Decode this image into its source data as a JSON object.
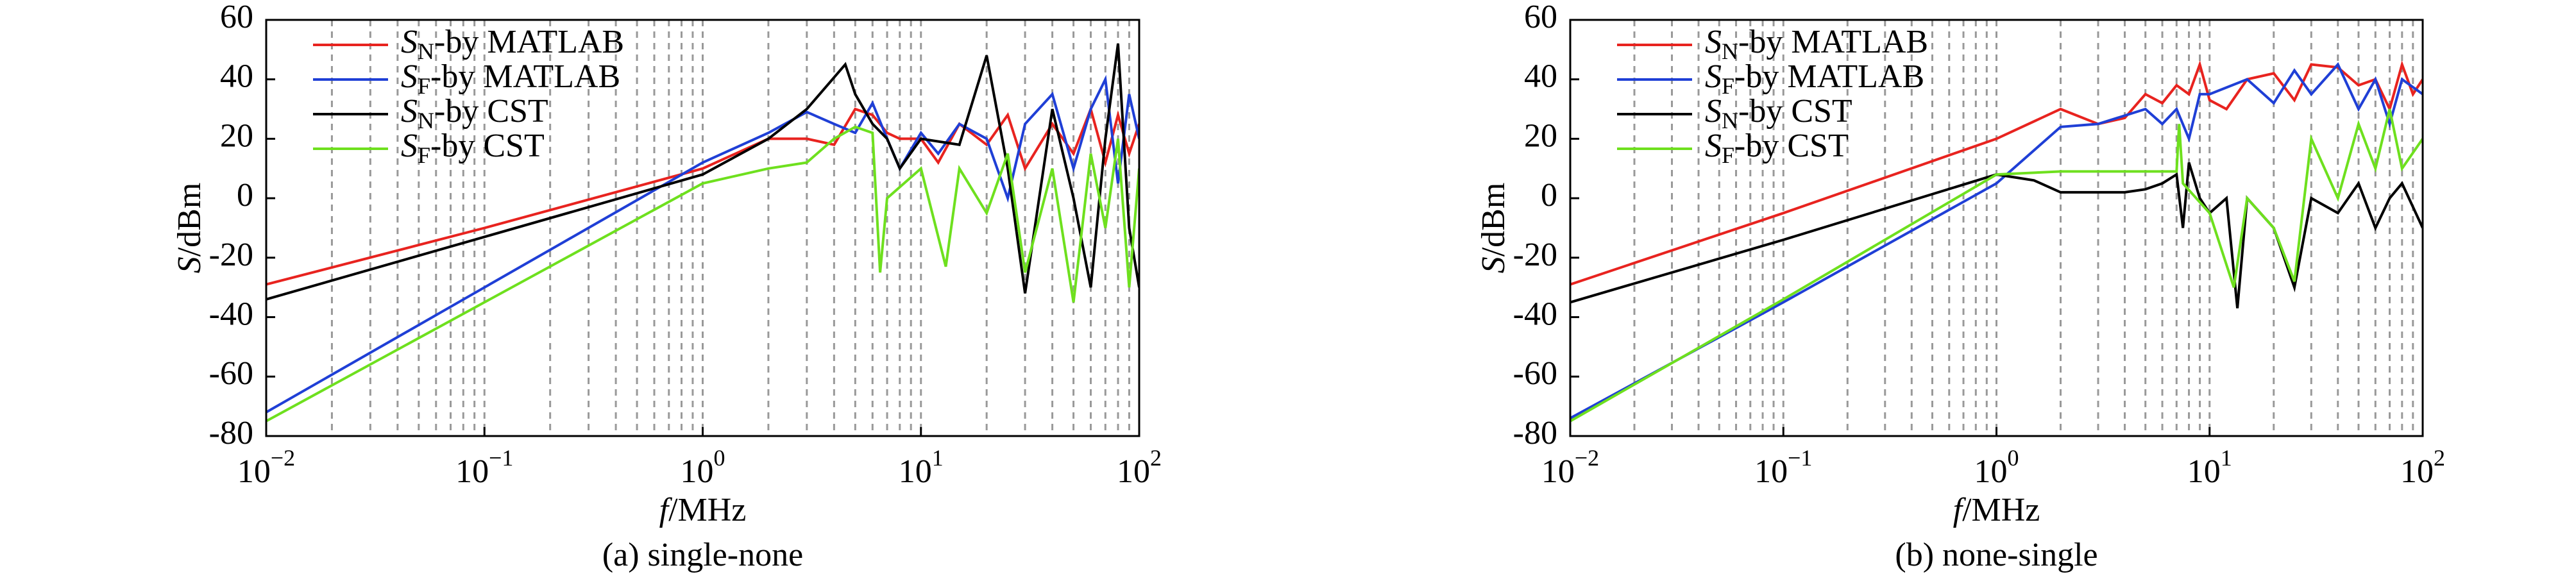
{
  "chart_data": [
    {
      "type": "line",
      "caption": "(a) single-none",
      "xlabel": "f/MHz",
      "ylabel": "S/dBm",
      "log_x": true,
      "grid": true,
      "xlim": [
        0.01,
        100
      ],
      "ylim": [
        -80,
        60
      ],
      "xticks": [
        {
          "value": 0.01,
          "label": "10−2"
        },
        {
          "value": 0.1,
          "label": "10−1"
        },
        {
          "value": 1,
          "label": "100"
        },
        {
          "value": 10,
          "label": "101"
        },
        {
          "value": 100,
          "label": "102"
        }
      ],
      "yticks": [
        -80,
        -60,
        -40,
        -20,
        0,
        20,
        40,
        60
      ],
      "series": [
        {
          "name": "SN-by MATLAB",
          "color": "#e8231f",
          "x": [
            0.01,
            0.1,
            1,
            2,
            3,
            4,
            5,
            6,
            7,
            8,
            10,
            12,
            15,
            20,
            25,
            30,
            40,
            50,
            60,
            70,
            80,
            90,
            100
          ],
          "values": [
            -29,
            -10,
            10,
            20,
            20,
            18,
            30,
            28,
            22,
            20,
            20,
            12,
            25,
            18,
            28,
            10,
            25,
            15,
            30,
            12,
            28,
            15,
            25
          ]
        },
        {
          "name": "SF-by MATLAB",
          "color": "#1f3fd6",
          "x": [
            0.01,
            0.1,
            1,
            2,
            3,
            4,
            5,
            6,
            7,
            8,
            10,
            12,
            15,
            20,
            25,
            30,
            40,
            50,
            60,
            70,
            80,
            90,
            100
          ],
          "values": [
            -72,
            -30,
            12,
            22,
            29,
            25,
            22,
            32,
            20,
            10,
            22,
            15,
            25,
            20,
            0,
            25,
            35,
            10,
            30,
            40,
            5,
            35,
            20
          ]
        },
        {
          "name": "SN-by CST",
          "color": "#000000",
          "x": [
            0.01,
            0.1,
            1,
            2,
            3,
            4.5,
            5,
            6,
            7,
            8,
            10,
            15,
            20,
            25,
            30,
            40,
            50,
            60,
            70,
            80,
            90,
            100
          ],
          "values": [
            -34,
            -13,
            8,
            20,
            30,
            45,
            35,
            25,
            20,
            10,
            20,
            18,
            48,
            10,
            -32,
            30,
            0,
            -30,
            20,
            52,
            -10,
            -30
          ]
        },
        {
          "name": "SF-by CST",
          "color": "#6ee01e",
          "x": [
            0.01,
            0.1,
            1,
            2,
            3,
            4,
            5,
            6,
            6.5,
            7,
            10,
            13,
            15,
            20,
            25,
            30,
            40,
            50,
            60,
            70,
            80,
            90,
            100
          ],
          "values": [
            -75,
            -35,
            5,
            10,
            12,
            20,
            24,
            22,
            -25,
            0,
            10,
            -23,
            10,
            -5,
            15,
            -25,
            10,
            -35,
            15,
            -10,
            20,
            -30,
            10
          ]
        }
      ]
    },
    {
      "type": "line",
      "caption": "(b) none-single",
      "xlabel": "f/MHz",
      "ylabel": "S/dBm",
      "log_x": true,
      "grid": true,
      "xlim": [
        0.01,
        100
      ],
      "ylim": [
        -80,
        60
      ],
      "xticks": [
        {
          "value": 0.01,
          "label": "10−2"
        },
        {
          "value": 0.1,
          "label": "10−1"
        },
        {
          "value": 1,
          "label": "100"
        },
        {
          "value": 10,
          "label": "101"
        },
        {
          "value": 100,
          "label": "102"
        }
      ],
      "yticks": [
        -80,
        -60,
        -40,
        -20,
        0,
        20,
        40,
        60
      ],
      "series": [
        {
          "name": "SN-by MATLAB",
          "color": "#e8231f",
          "x": [
            0.01,
            0.1,
            1,
            2,
            3,
            4,
            5,
            6,
            7,
            8,
            9,
            10,
            12,
            15,
            20,
            25,
            30,
            40,
            50,
            60,
            70,
            80,
            90,
            100
          ],
          "values": [
            -29,
            -5,
            20,
            30,
            25,
            27,
            35,
            32,
            38,
            35,
            45,
            33,
            30,
            40,
            42,
            33,
            45,
            44,
            38,
            40,
            30,
            45,
            35,
            40
          ]
        },
        {
          "name": "SF-by MATLAB",
          "color": "#1f3fd6",
          "x": [
            0.01,
            0.1,
            1,
            2,
            3,
            5,
            6,
            7,
            8,
            9,
            10,
            15,
            20,
            25,
            30,
            40,
            50,
            60,
            70,
            80,
            100
          ],
          "values": [
            -74,
            -35,
            5,
            24,
            25,
            30,
            25,
            30,
            20,
            35,
            35,
            40,
            32,
            43,
            35,
            45,
            30,
            40,
            25,
            40,
            35
          ]
        },
        {
          "name": "SN-by CST",
          "color": "#000000",
          "x": [
            0.01,
            0.1,
            1,
            1.5,
            2,
            3,
            4,
            5,
            6,
            7,
            7.5,
            8,
            9,
            10,
            12,
            13.5,
            15,
            20,
            25,
            30,
            40,
            50,
            60,
            70,
            80,
            100
          ],
          "values": [
            -35,
            -14,
            8,
            6,
            2,
            2,
            2,
            3,
            5,
            8,
            -10,
            12,
            0,
            -5,
            0,
            -37,
            0,
            -10,
            -30,
            0,
            -5,
            5,
            -10,
            0,
            5,
            -10
          ]
        },
        {
          "name": "SF-by CST",
          "color": "#6ee01e",
          "x": [
            0.01,
            0.1,
            1,
            2,
            5,
            7,
            7.2,
            7.5,
            10,
            13,
            15,
            20,
            25,
            30,
            40,
            50,
            60,
            70,
            80,
            100
          ],
          "values": [
            -75,
            -34,
            8,
            9,
            9,
            9,
            25,
            5,
            -5,
            -30,
            0,
            -10,
            -28,
            20,
            0,
            25,
            10,
            30,
            10,
            20
          ]
        }
      ]
    }
  ]
}
